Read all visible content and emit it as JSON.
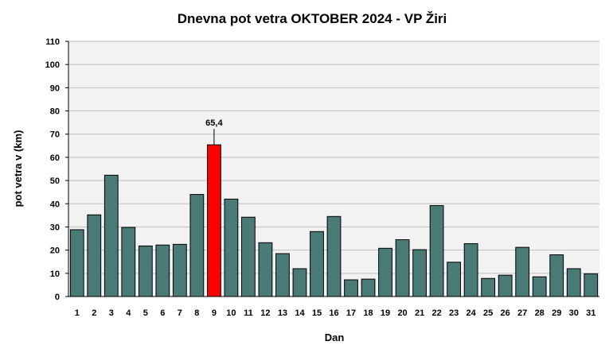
{
  "chart_data": {
    "type": "bar",
    "title": "Dnevna pot vetra OKTOBER  2024 - VP Žiri",
    "xlabel": "Dan",
    "ylabel": "pot vetra  v (km)",
    "ylim": [
      0,
      110
    ],
    "yticks": [
      0,
      10,
      20,
      30,
      40,
      50,
      60,
      70,
      80,
      90,
      100,
      110
    ],
    "categories": [
      "1",
      "2",
      "3",
      "4",
      "5",
      "6",
      "7",
      "8",
      "9",
      "10",
      "11",
      "12",
      "13",
      "14",
      "15",
      "16",
      "17",
      "18",
      "19",
      "20",
      "21",
      "22",
      "23",
      "24",
      "25",
      "26",
      "27",
      "28",
      "29",
      "30",
      "31"
    ],
    "values": [
      28.8,
      35.2,
      52.3,
      29.8,
      21.8,
      22.2,
      22.5,
      44.0,
      65.4,
      42.0,
      34.2,
      23.2,
      18.5,
      12.0,
      28.0,
      34.5,
      7.2,
      7.5,
      20.8,
      24.5,
      20.2,
      39.2,
      14.8,
      22.8,
      7.8,
      9.2,
      21.2,
      8.5,
      18.0,
      12.0,
      9.8
    ],
    "highlight_index": 8,
    "highlight_label": "65,4",
    "colors": {
      "bar": "#4a7a76",
      "highlight": "#ff0000",
      "plot_background": "#f2f2f2",
      "grid": "#bfbfbf"
    },
    "grid": true,
    "legend": false
  }
}
